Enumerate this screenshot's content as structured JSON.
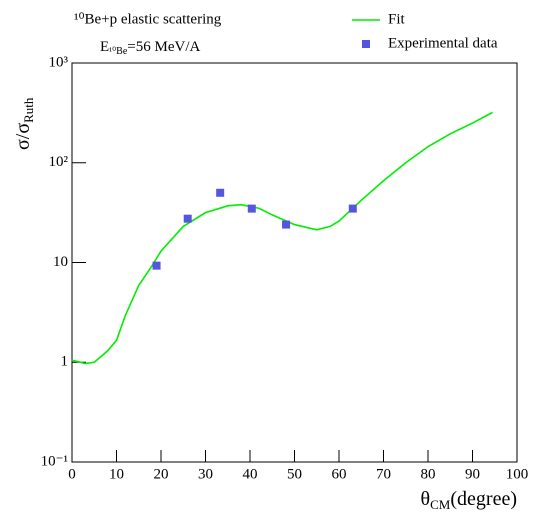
{
  "chart_data": {
    "type": "scatter",
    "title": "¹⁰Be+p elastic scattering",
    "annotation": {
      "symbol": "E",
      "subscript": "¹⁰Be",
      "text": "=56 MeV/A"
    },
    "x_label": {
      "main": "θ",
      "sub": "CM",
      "suffix": "(degree)"
    },
    "y_label": {
      "main": "σ/σ",
      "sub": "Ruth"
    },
    "xlim": [
      0,
      100
    ],
    "xticks": [
      0,
      10,
      20,
      30,
      40,
      50,
      60,
      70,
      80,
      90,
      100
    ],
    "ylim": [
      0.1,
      1000
    ],
    "yticks": [
      {
        "value": 0.1,
        "label": "10⁻¹"
      },
      1,
      10,
      {
        "value": 100,
        "label": "10²"
      },
      {
        "value": 1000,
        "label": "10³"
      }
    ],
    "log_y": true,
    "legend": "top-right",
    "series": [
      {
        "name": "Fit",
        "type": "line",
        "color": "#00ee00",
        "x": [
          0,
          3,
          5,
          8,
          10,
          12,
          15,
          18,
          20,
          25,
          30,
          35,
          38,
          42,
          45,
          50,
          55,
          58,
          60,
          65,
          70,
          75,
          80,
          85,
          90,
          94.5
        ],
        "values": [
          1.05,
          0.97,
          1.0,
          1.3,
          1.66,
          2.95,
          5.9,
          9.3,
          13,
          23,
          31.6,
          37,
          38,
          35,
          30,
          24,
          21.3,
          23,
          26,
          42,
          66,
          100,
          145,
          195,
          250,
          320
        ]
      },
      {
        "name": "Experimental data",
        "type": "scatter",
        "color": "#5555dd",
        "x": [
          19,
          26,
          33.3,
          40.4,
          48.1,
          63.1
        ],
        "values": [
          9.3,
          27.5,
          50,
          34.7,
          24,
          34.7
        ]
      }
    ]
  }
}
